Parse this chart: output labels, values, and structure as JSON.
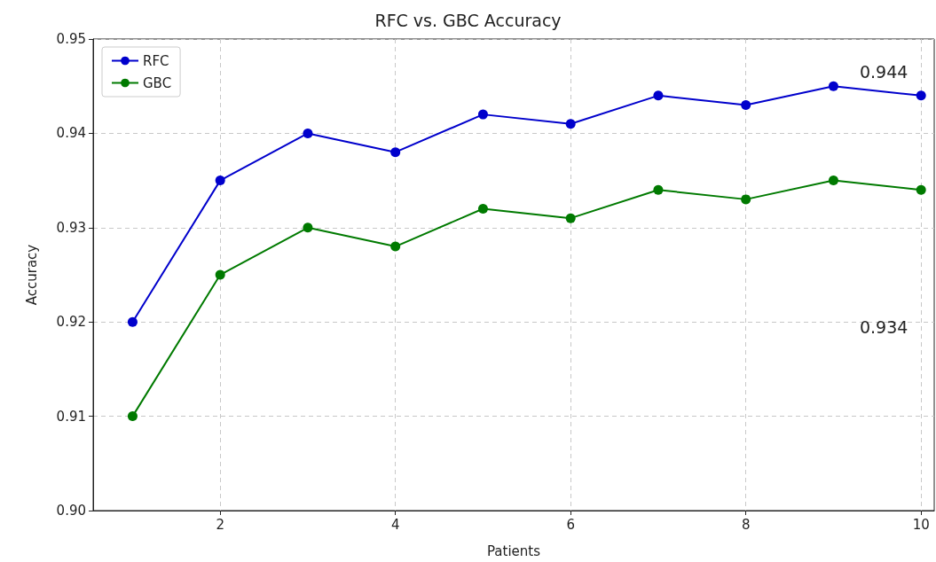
{
  "chart_data": {
    "type": "line",
    "title": "RFC vs. GBC Accuracy",
    "xlabel": "Patients",
    "ylabel": "Accuracy",
    "x": [
      1,
      2,
      3,
      4,
      5,
      6,
      7,
      8,
      9,
      10
    ],
    "series": [
      {
        "name": "RFC",
        "color": "#0000cc",
        "values": [
          0.92,
          0.935,
          0.94,
          0.938,
          0.942,
          0.941,
          0.944,
          0.943,
          0.945,
          0.944
        ]
      },
      {
        "name": "GBC",
        "color": "#007a00",
        "values": [
          0.91,
          0.925,
          0.93,
          0.928,
          0.932,
          0.931,
          0.934,
          0.933,
          0.935,
          0.934
        ]
      }
    ],
    "xlim": [
      0.55,
      10.15
    ],
    "xticks": [
      2,
      4,
      6,
      8,
      10
    ],
    "ylim": [
      0.9,
      0.95
    ],
    "yticks": [
      {
        "value": 0.9,
        "label": "0.90"
      },
      0.91,
      0.92,
      0.93,
      0.94,
      0.95
    ],
    "annotations": [
      "0.944",
      "0.934"
    ],
    "grid": true,
    "legend": "top left",
    "marker": "circle",
    "line_style": "solid"
  }
}
